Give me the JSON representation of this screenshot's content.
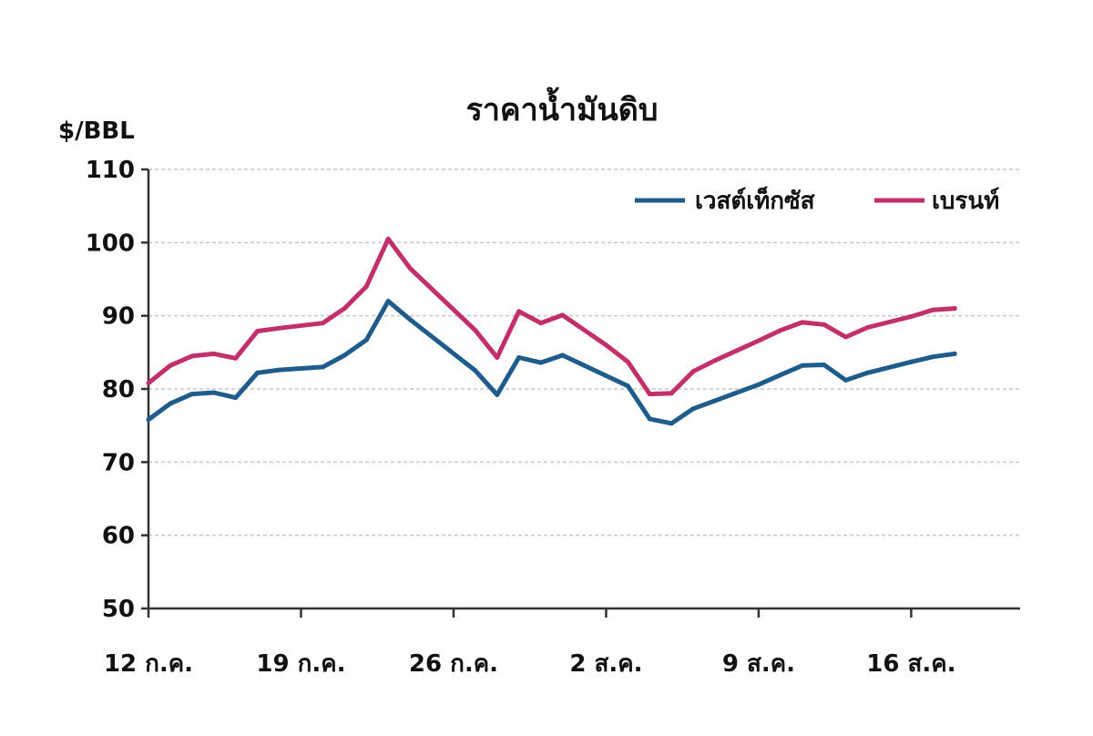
{
  "chart_data": {
    "type": "line",
    "title": "ราคาน้ำมันดิบ",
    "ylabel": "$/BBL",
    "xlabel": "",
    "ylim": [
      50,
      110
    ],
    "yticks": [
      50,
      60,
      70,
      80,
      90,
      100,
      110
    ],
    "xlim": [
      "2022-07-12",
      "2022-08-21"
    ],
    "xticks": [
      {
        "date": "2022-07-12",
        "label": "12 ก.ค."
      },
      {
        "date": "2022-07-19",
        "label": "19 ก.ค."
      },
      {
        "date": "2022-07-26",
        "label": "26 ก.ค."
      },
      {
        "date": "2022-08-02",
        "label": "2 ส.ค."
      },
      {
        "date": "2022-08-09",
        "label": "9 ส.ค."
      },
      {
        "date": "2022-08-16",
        "label": "16 ส.ค."
      }
    ],
    "grid": true,
    "legend_position": "top-right",
    "x": [
      "2022-07-12",
      "2022-07-13",
      "2022-07-14",
      "2022-07-15",
      "2022-07-16",
      "2022-07-17",
      "2022-07-18",
      "2022-07-20",
      "2022-07-21",
      "2022-07-22",
      "2022-07-23",
      "2022-07-24",
      "2022-07-27",
      "2022-07-28",
      "2022-07-29",
      "2022-07-30",
      "2022-07-31",
      "2022-08-02",
      "2022-08-03",
      "2022-08-04",
      "2022-08-05",
      "2022-08-06",
      "2022-08-07",
      "2022-08-09",
      "2022-08-10",
      "2022-08-11",
      "2022-08-12",
      "2022-08-13",
      "2022-08-14",
      "2022-08-16",
      "2022-08-17",
      "2022-08-18"
    ],
    "series": [
      {
        "name": "เวสต์เท็กซัส",
        "color": "#1f5c8b",
        "values": [
          75.8,
          78.0,
          79.3,
          79.5,
          78.8,
          82.2,
          82.6,
          83.0,
          84.6,
          86.7,
          92.0,
          89.5,
          82.5,
          79.2,
          84.3,
          83.6,
          84.6,
          81.8,
          80.4,
          75.9,
          75.3,
          77.3,
          78.4,
          80.6,
          81.9,
          83.2,
          83.3,
          81.2,
          82.2,
          83.7,
          84.4,
          84.8
        ]
      },
      {
        "name": "เบรนท์",
        "color": "#c2306c",
        "values": [
          80.8,
          83.2,
          84.5,
          84.8,
          84.2,
          87.9,
          88.3,
          89.0,
          91.0,
          94.0,
          100.5,
          96.5,
          88.0,
          84.3,
          90.6,
          89.0,
          90.1,
          86.0,
          83.7,
          79.3,
          79.4,
          82.4,
          83.9,
          86.6,
          88.0,
          89.1,
          88.8,
          87.1,
          88.4,
          89.9,
          90.8,
          91.0
        ]
      }
    ]
  }
}
